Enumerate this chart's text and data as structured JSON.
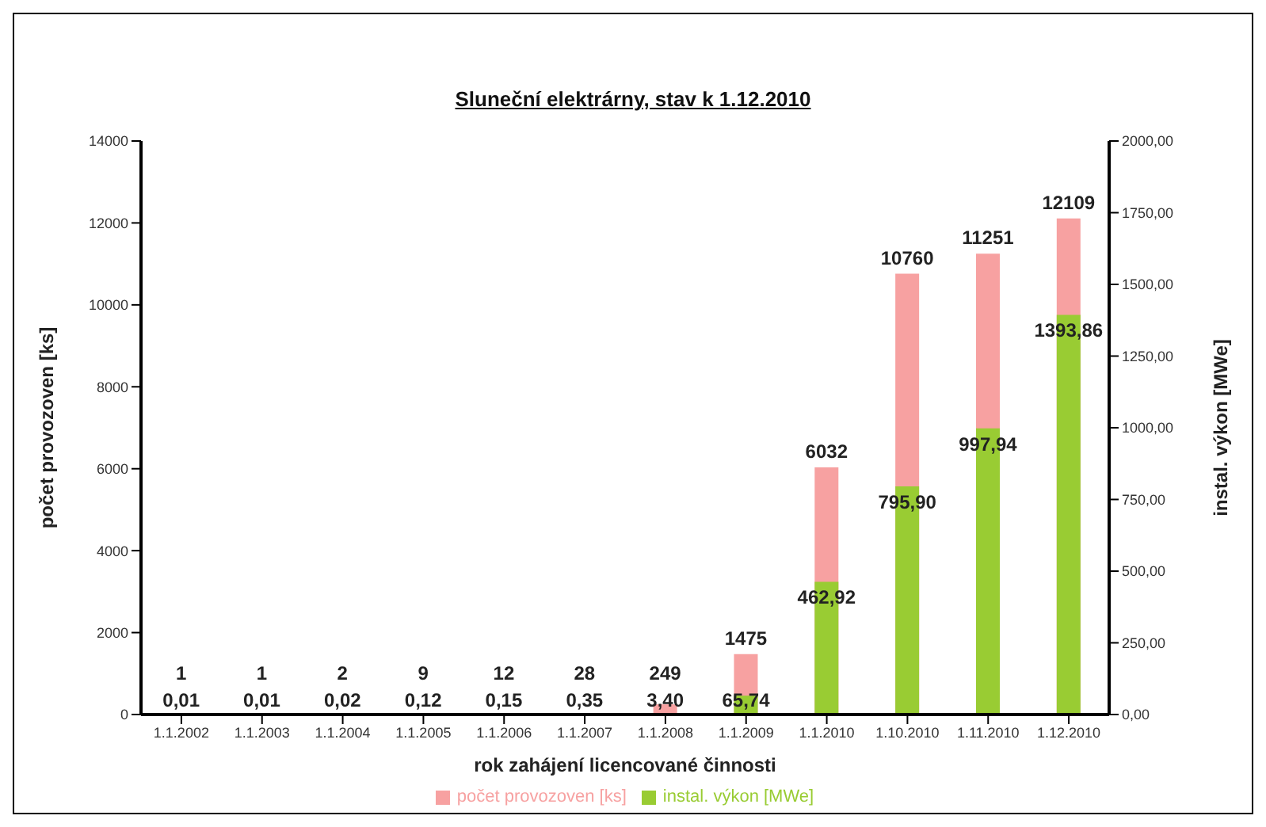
{
  "chart_data": {
    "type": "bar",
    "title": "Sluneční elektrárny, stav k 1.12.2010",
    "xlabel": "rok zahájení licencované činnosti",
    "ylabel": "počet provozoven [ks]",
    "y2label": "instal. výkon [MWe]",
    "categories": [
      "1.1.2002",
      "1.1.2003",
      "1.1.2004",
      "1.1.2005",
      "1.1.2006",
      "1.1.2007",
      "1.1.2008",
      "1.1.2009",
      "1.1.2010",
      "1.10.2010",
      "1.11.2010",
      "1.12.2010"
    ],
    "series": [
      {
        "name": "počet provozoven [ks]",
        "color": "#f7a1a1",
        "values": [
          1,
          1,
          2,
          9,
          12,
          28,
          249,
          1475,
          6032,
          10760,
          11251,
          12109
        ],
        "value_labels": [
          "1",
          "1",
          "2",
          "9",
          "12",
          "28",
          "249",
          "1475",
          "6032",
          "10760",
          "11251",
          "12109"
        ]
      },
      {
        "name": "instal. výkon [MWe]",
        "color": "#99cc33",
        "axis": "y2",
        "values": [
          0.01,
          0.01,
          0.02,
          0.12,
          0.15,
          0.35,
          3.4,
          65.74,
          462.92,
          795.9,
          997.94,
          1393.86
        ],
        "value_labels": [
          "0,01",
          "0,01",
          "0,02",
          "0,12",
          "0,15",
          "0,35",
          "3,40",
          "65,74",
          "462,92",
          "795,90",
          "997,94",
          "1393,86"
        ]
      }
    ],
    "ylim": [
      0,
      14000
    ],
    "yticks": [
      0,
      2000,
      4000,
      6000,
      8000,
      10000,
      12000,
      14000
    ],
    "y2lim": [
      0,
      2000
    ],
    "y2ticks": [
      {
        "value": 0,
        "label": "0,00"
      },
      {
        "value": 250,
        "label": "250,00"
      },
      {
        "value": 500,
        "label": "500,00"
      },
      {
        "value": 750,
        "label": "750,00"
      },
      {
        "value": 1000,
        "label": "1000,00"
      },
      {
        "value": 1250,
        "label": "1250,00"
      },
      {
        "value": 1500,
        "label": "1500,00"
      },
      {
        "value": 1750,
        "label": "1750,00"
      },
      {
        "value": 2000,
        "label": "2000,00"
      }
    ],
    "grid": false,
    "legend": "bottom"
  }
}
